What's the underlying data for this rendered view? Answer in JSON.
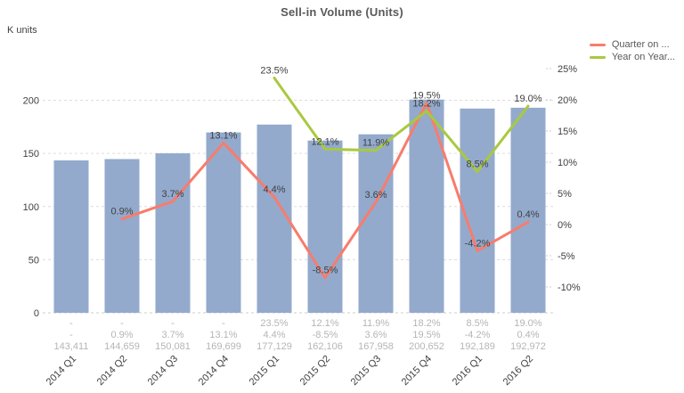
{
  "title": "Sell-in Volume (Units)",
  "left_axis": {
    "title": "K units",
    "ticks": [
      0,
      50,
      100,
      150,
      200
    ]
  },
  "right_axis": {
    "ticks": [
      {
        "label": "25%",
        "pct": 25
      },
      {
        "label": "20%",
        "pct": 20
      },
      {
        "label": "15%",
        "pct": 15
      },
      {
        "label": "10%",
        "pct": 10
      },
      {
        "label": "5%",
        "pct": 5
      },
      {
        "label": "0%",
        "pct": 0
      },
      {
        "label": "-5%",
        "pct": -5
      },
      {
        "label": "-10%",
        "pct": -10
      }
    ]
  },
  "legend": [
    {
      "label": "Quarter on ...",
      "color": "#f87c6c"
    },
    {
      "label": "Year on Year...",
      "color": "#a9c93f"
    }
  ],
  "colors": {
    "bar": "#93aacd",
    "qoq_line": "#f87c6c",
    "yoy_line": "#a9c93f",
    "grid": "#dcdcdc",
    "tick_text": "#404040",
    "footer_text": "#b5b5b5",
    "label_text": "#404040"
  },
  "chart_data": {
    "type": "combo-bar-line",
    "title": "Sell-in Volume (Units)",
    "categories": [
      "2014 Q1",
      "2014 Q2",
      "2014 Q3",
      "2014 Q4",
      "2015 Q1",
      "2015 Q2",
      "2015 Q3",
      "2015 Q4",
      "2016 Q1",
      "2016 Q2"
    ],
    "series": [
      {
        "name": "sell-in-volume-units",
        "type": "bar",
        "axis": "left",
        "color": "#93aacd",
        "values": [
          143411,
          144659,
          150081,
          169699,
          177129,
          162106,
          167958,
          200652,
          192189,
          192972
        ],
        "labels": [
          "143,411",
          "144,659",
          "150,081",
          "169,699",
          "177,129",
          "162,106",
          "167,958",
          "200,652",
          "192,189",
          "192,972"
        ]
      },
      {
        "name": "quarter-on-quarter-pct",
        "type": "line",
        "axis": "right",
        "color": "#f87c6c",
        "values": [
          null,
          0.9,
          3.7,
          13.1,
          4.4,
          -8.5,
          3.6,
          19.5,
          -4.2,
          0.4
        ],
        "labels": [
          "-",
          "0.9%",
          "3.7%",
          "13.1%",
          "4.4%",
          "-8.5%",
          "3.6%",
          "19.5%",
          "-4.2%",
          "0.4%"
        ]
      },
      {
        "name": "year-on-year-pct",
        "type": "line",
        "axis": "right",
        "color": "#a9c93f",
        "values": [
          null,
          null,
          null,
          null,
          23.5,
          12.1,
          11.9,
          18.2,
          8.5,
          19.0
        ],
        "labels": [
          "-",
          "-",
          "-",
          "-",
          "23.5%",
          "12.1%",
          "11.9%",
          "18.2%",
          "8.5%",
          "19.0%"
        ]
      }
    ],
    "footer_row_order": [
      "year-on-year-pct",
      "quarter-on-quarter-pct",
      "sell-in-volume-units"
    ],
    "left_axis_unit": "K units",
    "left_axis_range": [
      0,
      230
    ],
    "right_axis_range_pct": [
      -14,
      25
    ],
    "grid": "horizontal-dashed-at-left-ticks",
    "legend_position": "top-right"
  }
}
